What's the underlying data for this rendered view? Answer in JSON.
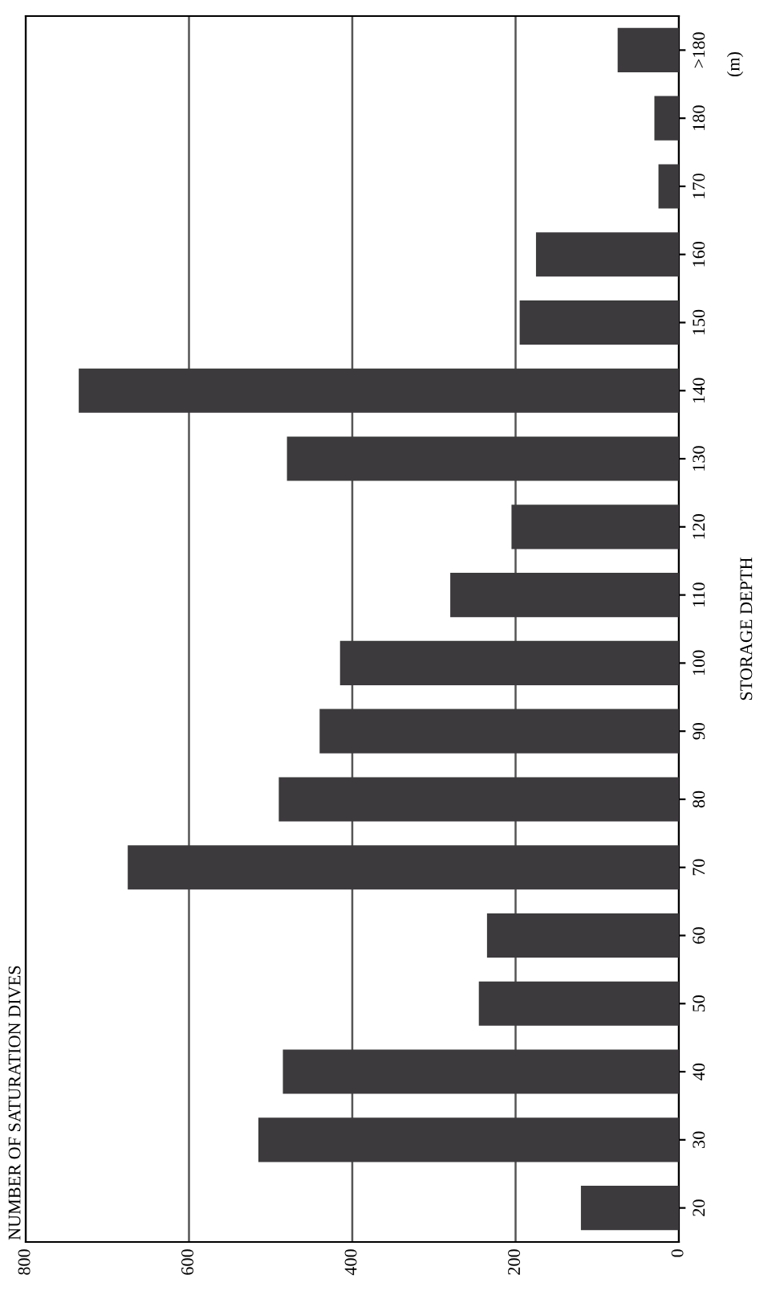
{
  "chart_data": {
    "type": "bar",
    "orientation": "horizontal",
    "title": "NUMBER OF SATURATION DIVES",
    "ylabel": "STORAGE DEPTH",
    "annotations": [
      "(m)"
    ],
    "categories": [
      ">180",
      "180",
      "170",
      "160",
      "150",
      "140",
      "130",
      "120",
      "110",
      "100",
      "90",
      "80",
      "70",
      "60",
      "50",
      "40",
      "30",
      "20"
    ],
    "values": [
      75,
      30,
      25,
      175,
      195,
      735,
      480,
      205,
      280,
      415,
      440,
      490,
      675,
      235,
      245,
      485,
      515,
      120
    ],
    "color": "#3c3a3c",
    "xlim": [
      800,
      0
    ],
    "xticks": [
      0,
      200,
      400,
      600,
      800
    ],
    "grid": "x",
    "legend": false
  }
}
